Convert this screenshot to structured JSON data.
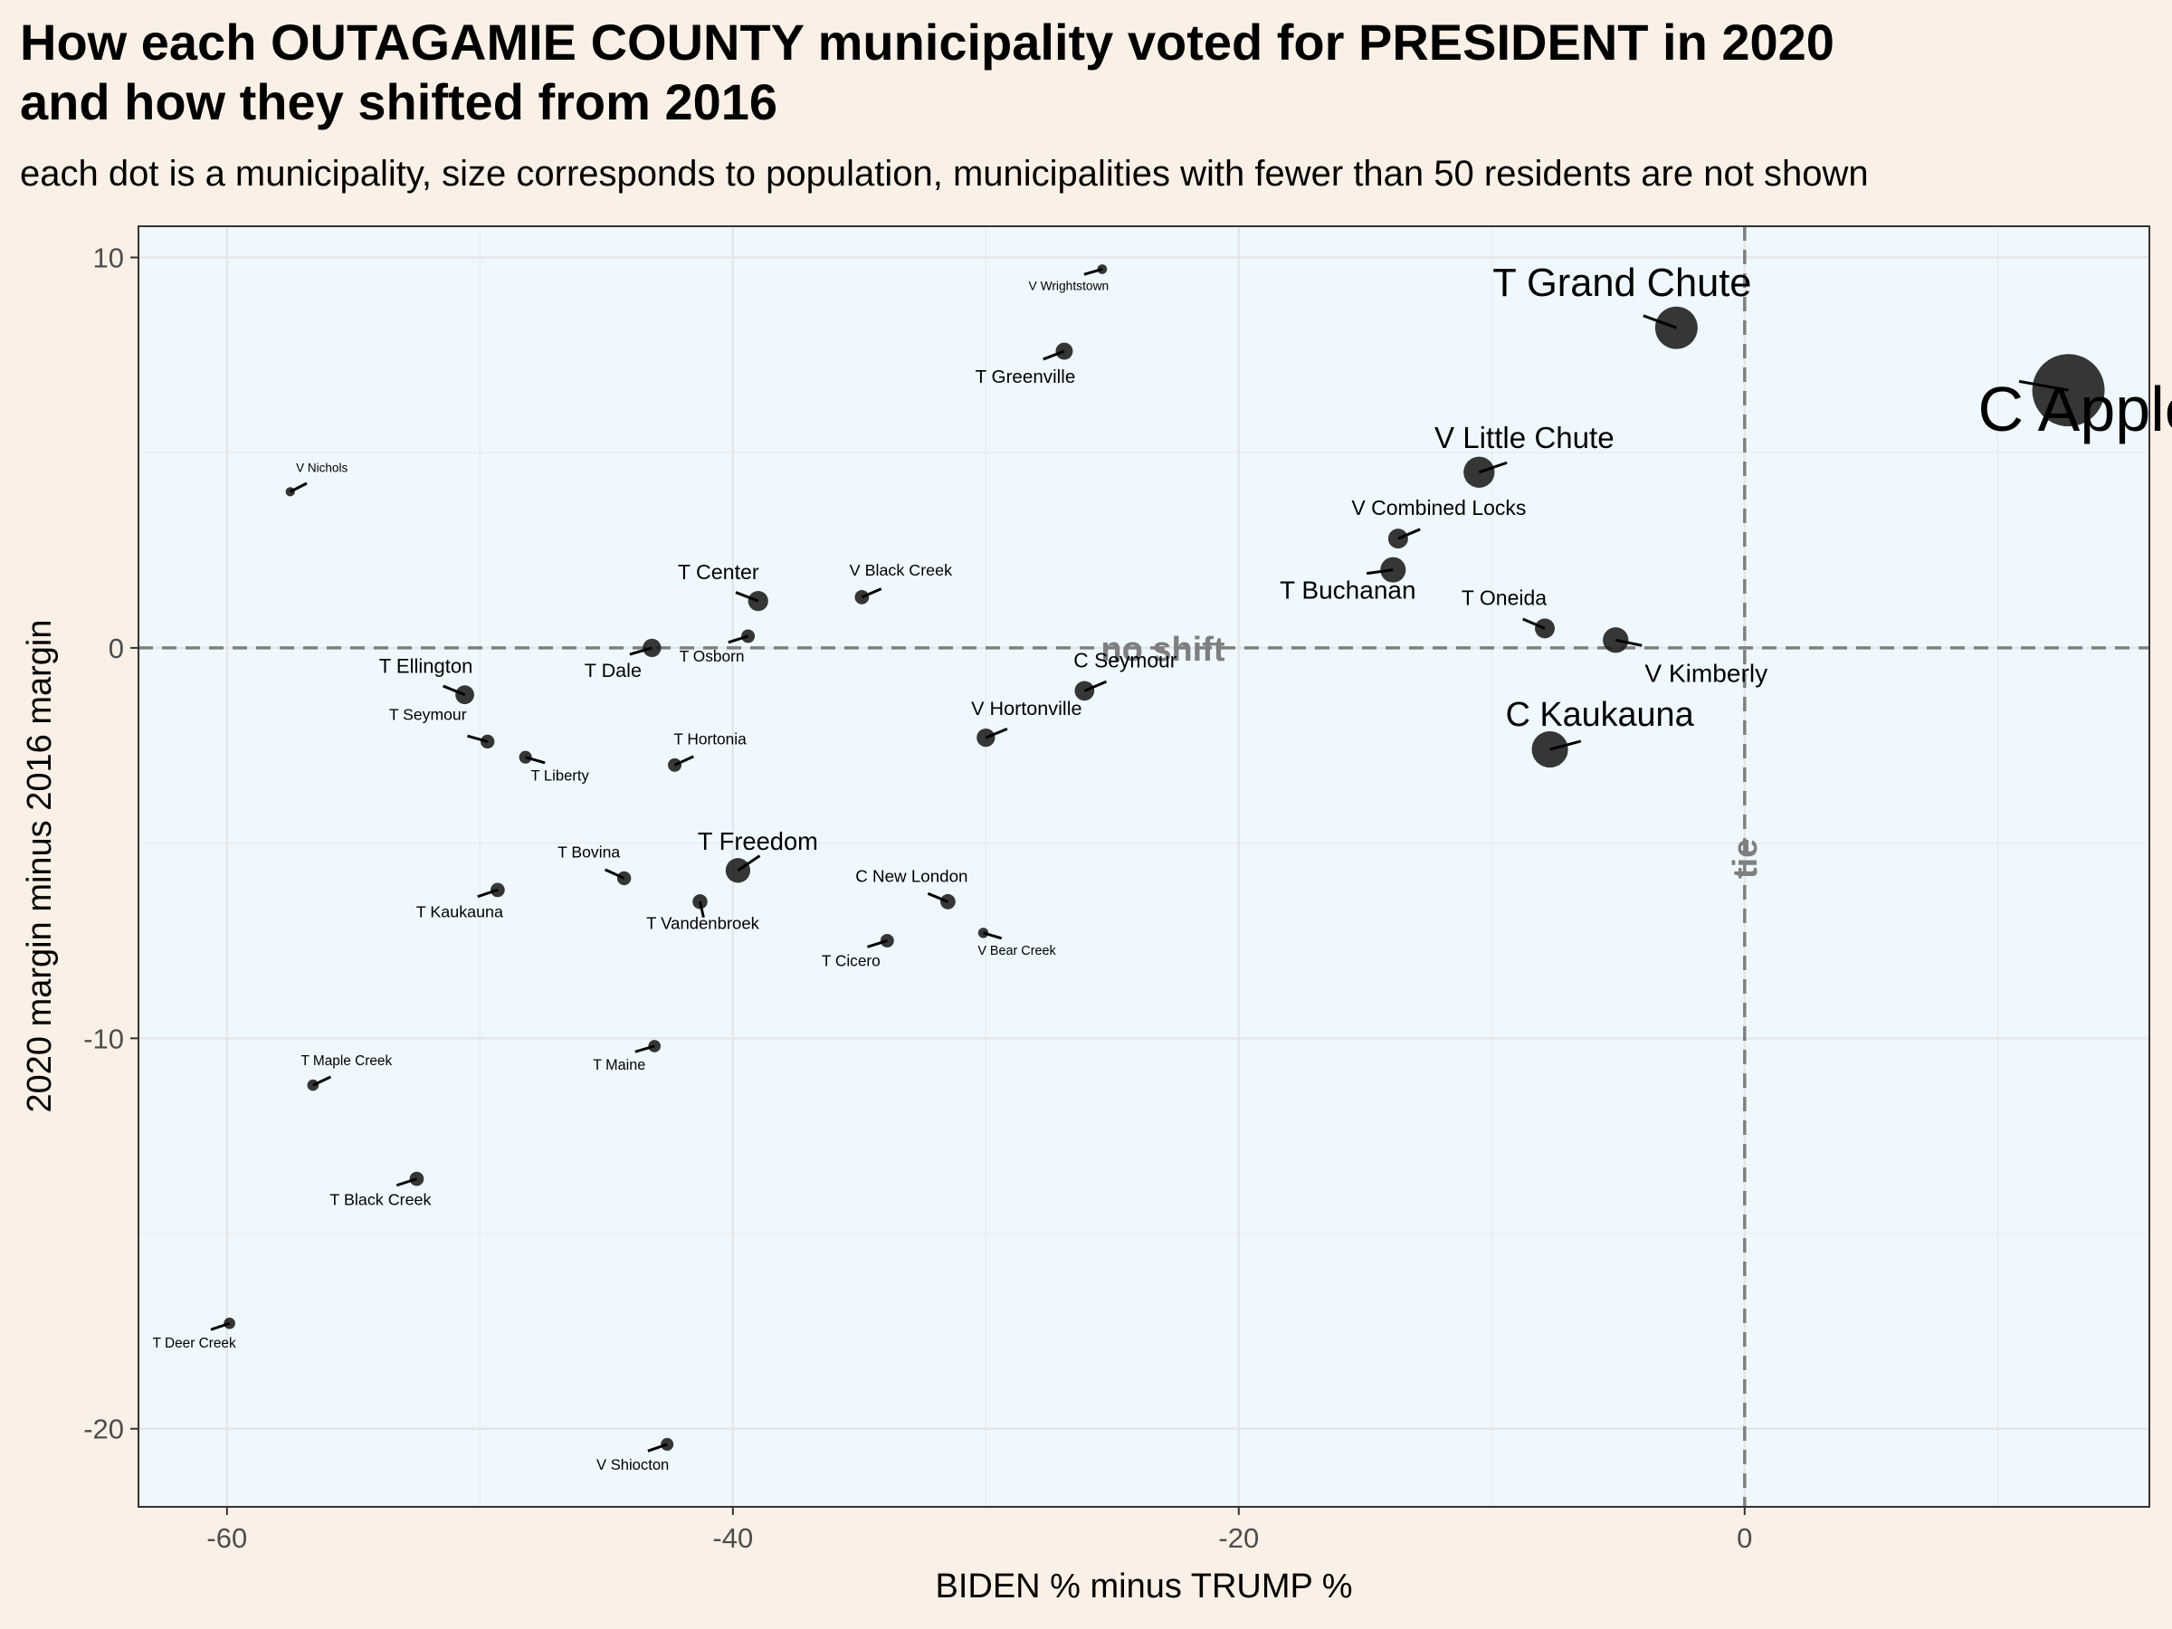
{
  "header": {
    "title_line1": "How each OUTAGAMIE COUNTY municipality voted for PRESIDENT in 2020",
    "title_line2": "and how they shifted from 2016",
    "subtitle": "each dot is a municipality, size corresponds to population, municipalities with fewer than 50 residents are not shown"
  },
  "chart_data": {
    "type": "scatter",
    "xlabel": "BIDEN % minus TRUMP %",
    "ylabel": "2020 margin minus 2016 margin",
    "xlim": [
      -63.5,
      16
    ],
    "ylim": [
      -22,
      10.8
    ],
    "x_ticks": [
      -60,
      -40,
      -20,
      0
    ],
    "y_ticks": [
      -20,
      -10,
      0,
      10
    ],
    "grid": true,
    "reference_lines": [
      {
        "axis": "y",
        "value": 0,
        "label": "no shift"
      },
      {
        "axis": "x",
        "value": 0,
        "label": "tie"
      }
    ],
    "colors": {
      "panel_bg": "#f0f8ff",
      "page_bg": "#faf0e6",
      "point": "#1a1a1a",
      "grid": "#e6e6e6",
      "reference": "#7f7f7f"
    },
    "points": [
      {
        "name": "C Appleton",
        "x": 12.8,
        "y": 6.6,
        "size": 75000
      },
      {
        "name": "T Grand Chute",
        "x": -2.7,
        "y": 8.2,
        "size": 23000
      },
      {
        "name": "V Little Chute",
        "x": -10.5,
        "y": 4.5,
        "size": 11000
      },
      {
        "name": "V Combined Locks",
        "x": -13.7,
        "y": 2.8,
        "size": 3500
      },
      {
        "name": "T Buchanan",
        "x": -13.9,
        "y": 2.0,
        "size": 6700
      },
      {
        "name": "T Oneida",
        "x": -7.9,
        "y": 0.5,
        "size": 3500
      },
      {
        "name": "V Kimberly",
        "x": -5.1,
        "y": 0.2,
        "size": 6800
      },
      {
        "name": "C Kaukauna",
        "x": -7.7,
        "y": -2.6,
        "size": 16000
      },
      {
        "name": "C Seymour",
        "x": -26.1,
        "y": -1.1,
        "size": 3400
      },
      {
        "name": "V Hortonville",
        "x": -30.0,
        "y": -2.3,
        "size": 2800
      },
      {
        "name": "V Wrightstown",
        "x": -25.4,
        "y": 9.7,
        "size": 300
      },
      {
        "name": "T Greenville",
        "x": -26.9,
        "y": 7.6,
        "size": 2300
      },
      {
        "name": "V Black Creek",
        "x": -34.9,
        "y": 1.3,
        "size": 1300
      },
      {
        "name": "T Center",
        "x": -39.0,
        "y": 1.2,
        "size": 3600
      },
      {
        "name": "T Osborn",
        "x": -39.4,
        "y": 0.3,
        "size": 1100
      },
      {
        "name": "T Dale",
        "x": -43.2,
        "y": 0.0,
        "size": 2800
      },
      {
        "name": "T Ellington",
        "x": -50.6,
        "y": -1.2,
        "size": 3000
      },
      {
        "name": "T Seymour",
        "x": -49.7,
        "y": -2.4,
        "size": 1200
      },
      {
        "name": "T Liberty",
        "x": -48.2,
        "y": -2.8,
        "size": 900
      },
      {
        "name": "T Hortonia",
        "x": -42.3,
        "y": -3.0,
        "size": 1100
      },
      {
        "name": "T Freedom",
        "x": -39.8,
        "y": -5.7,
        "size": 6200
      },
      {
        "name": "T Bovina",
        "x": -44.3,
        "y": -5.9,
        "size": 1200
      },
      {
        "name": "T Kaukauna",
        "x": -49.3,
        "y": -6.2,
        "size": 1300
      },
      {
        "name": "T Vandenbroek",
        "x": -41.3,
        "y": -6.5,
        "size": 1500
      },
      {
        "name": "C New London",
        "x": -31.5,
        "y": -6.5,
        "size": 1600
      },
      {
        "name": "T Cicero",
        "x": -33.9,
        "y": -7.5,
        "size": 1100
      },
      {
        "name": "V Bear Creek",
        "x": -30.1,
        "y": -7.3,
        "size": 400
      },
      {
        "name": "T Maine",
        "x": -43.1,
        "y": -10.2,
        "size": 800
      },
      {
        "name": "T Maple Creek",
        "x": -56.6,
        "y": -11.2,
        "size": 600
      },
      {
        "name": "T Black Creek",
        "x": -52.5,
        "y": -13.6,
        "size": 1300
      },
      {
        "name": "T Deer Creek",
        "x": -59.9,
        "y": -17.3,
        "size": 600
      },
      {
        "name": "V Shiocton",
        "x": -42.6,
        "y": -20.4,
        "size": 900
      },
      {
        "name": "V Nichols",
        "x": -57.5,
        "y": 4.0,
        "size": 250
      }
    ]
  }
}
